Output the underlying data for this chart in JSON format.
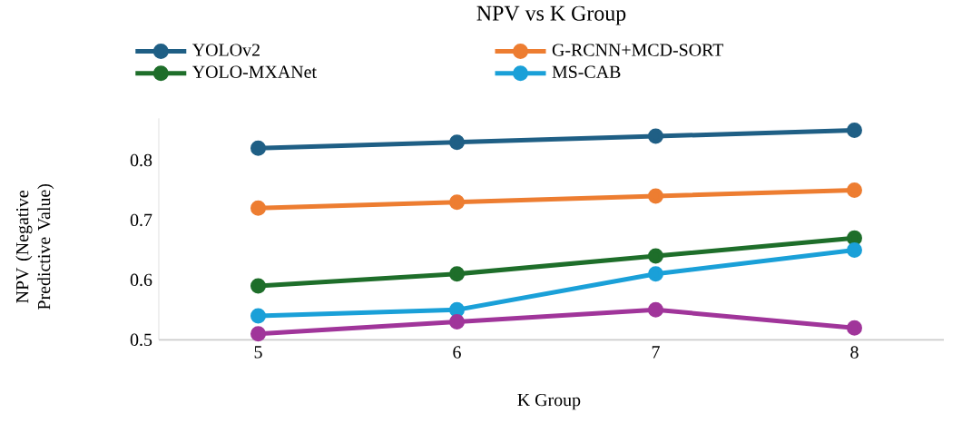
{
  "chart_data": {
    "type": "line",
    "title": "NPV vs K Group",
    "xlabel": "K Group",
    "ylabel": "NPV (Negative Predictive Value)",
    "categories": [
      "5",
      "6",
      "7",
      "8"
    ],
    "series": [
      {
        "name": "YOLOv2",
        "color": "#1f5f85",
        "values": [
          0.82,
          0.83,
          0.84,
          0.85
        ]
      },
      {
        "name": "G-RCNN+MCD-SORT",
        "color": "#ed7d31",
        "values": [
          0.72,
          0.73,
          0.74,
          0.75
        ]
      },
      {
        "name": "YOLO-MXANet",
        "color": "#1e6e2a",
        "values": [
          0.59,
          0.61,
          0.64,
          0.67
        ]
      },
      {
        "name": "MS-CAB",
        "color": "#1aa0d8",
        "values": [
          0.54,
          0.55,
          0.61,
          0.65
        ]
      },
      {
        "color": "#a0359a",
        "values": [
          0.51,
          0.53,
          0.55,
          0.52
        ]
      }
    ],
    "ylim": [
      0.5,
      0.87
    ],
    "yticks": [
      0.5,
      0.6,
      0.7,
      0.8
    ],
    "legend": "top",
    "marker": "circle",
    "line_style": "solid"
  }
}
